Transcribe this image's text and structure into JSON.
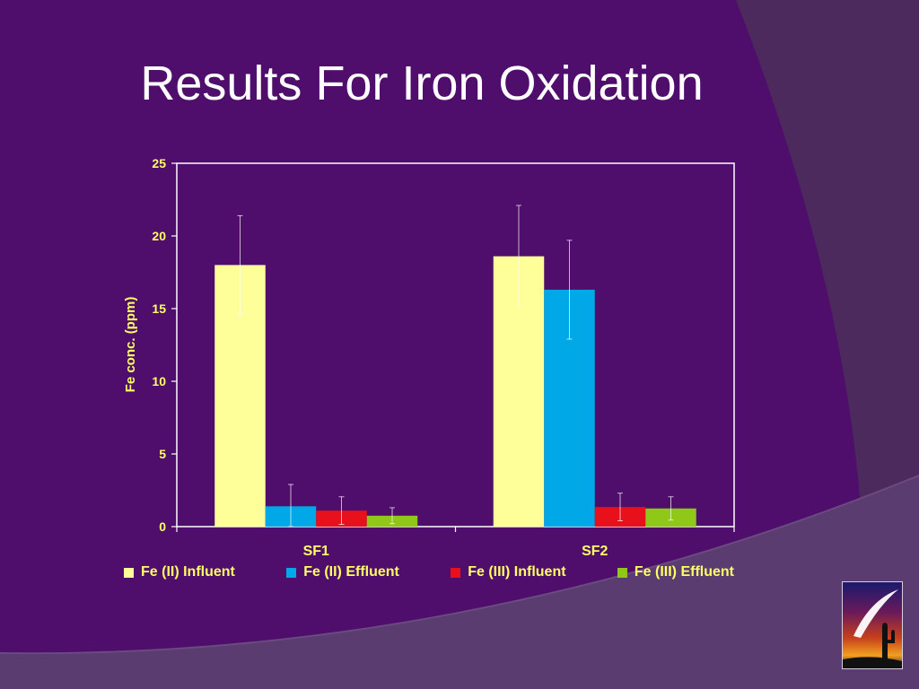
{
  "slide": {
    "title": "Results For Iron Oxidation"
  },
  "colors": {
    "background": "#4f0e6b",
    "accent_shape": "#5a3a70",
    "axis_text": "#ffff66",
    "plot_area": "#4f0e6b",
    "plot_border": "#ffffff"
  },
  "chart_data": {
    "type": "bar",
    "title": "",
    "xlabel": "",
    "ylabel": "Fe conc. (ppm)",
    "ylim": [
      0,
      25
    ],
    "yticks": [
      0,
      5,
      10,
      15,
      20,
      25
    ],
    "categories": [
      "SF1",
      "SF2"
    ],
    "series": [
      {
        "name": "Fe (II) Influent",
        "color": "#ffff99",
        "values": [
          18.0,
          18.6
        ],
        "errors": [
          3.4,
          3.5
        ]
      },
      {
        "name": "Fe (II) Effluent",
        "color": "#00a8e8",
        "values": [
          1.4,
          16.3
        ],
        "errors": [
          1.5,
          3.4
        ]
      },
      {
        "name": "Fe (III) Influent",
        "color": "#e8101a",
        "values": [
          1.1,
          1.35
        ],
        "errors": [
          0.95,
          0.95
        ]
      },
      {
        "name": "Fe (III) Effluent",
        "color": "#90c81a",
        "values": [
          0.75,
          1.25
        ],
        "errors": [
          0.55,
          0.8
        ]
      }
    ],
    "legend_position": "bottom",
    "grid": false
  },
  "logo": {
    "icon": "cactus-sunset-logo-icon"
  }
}
